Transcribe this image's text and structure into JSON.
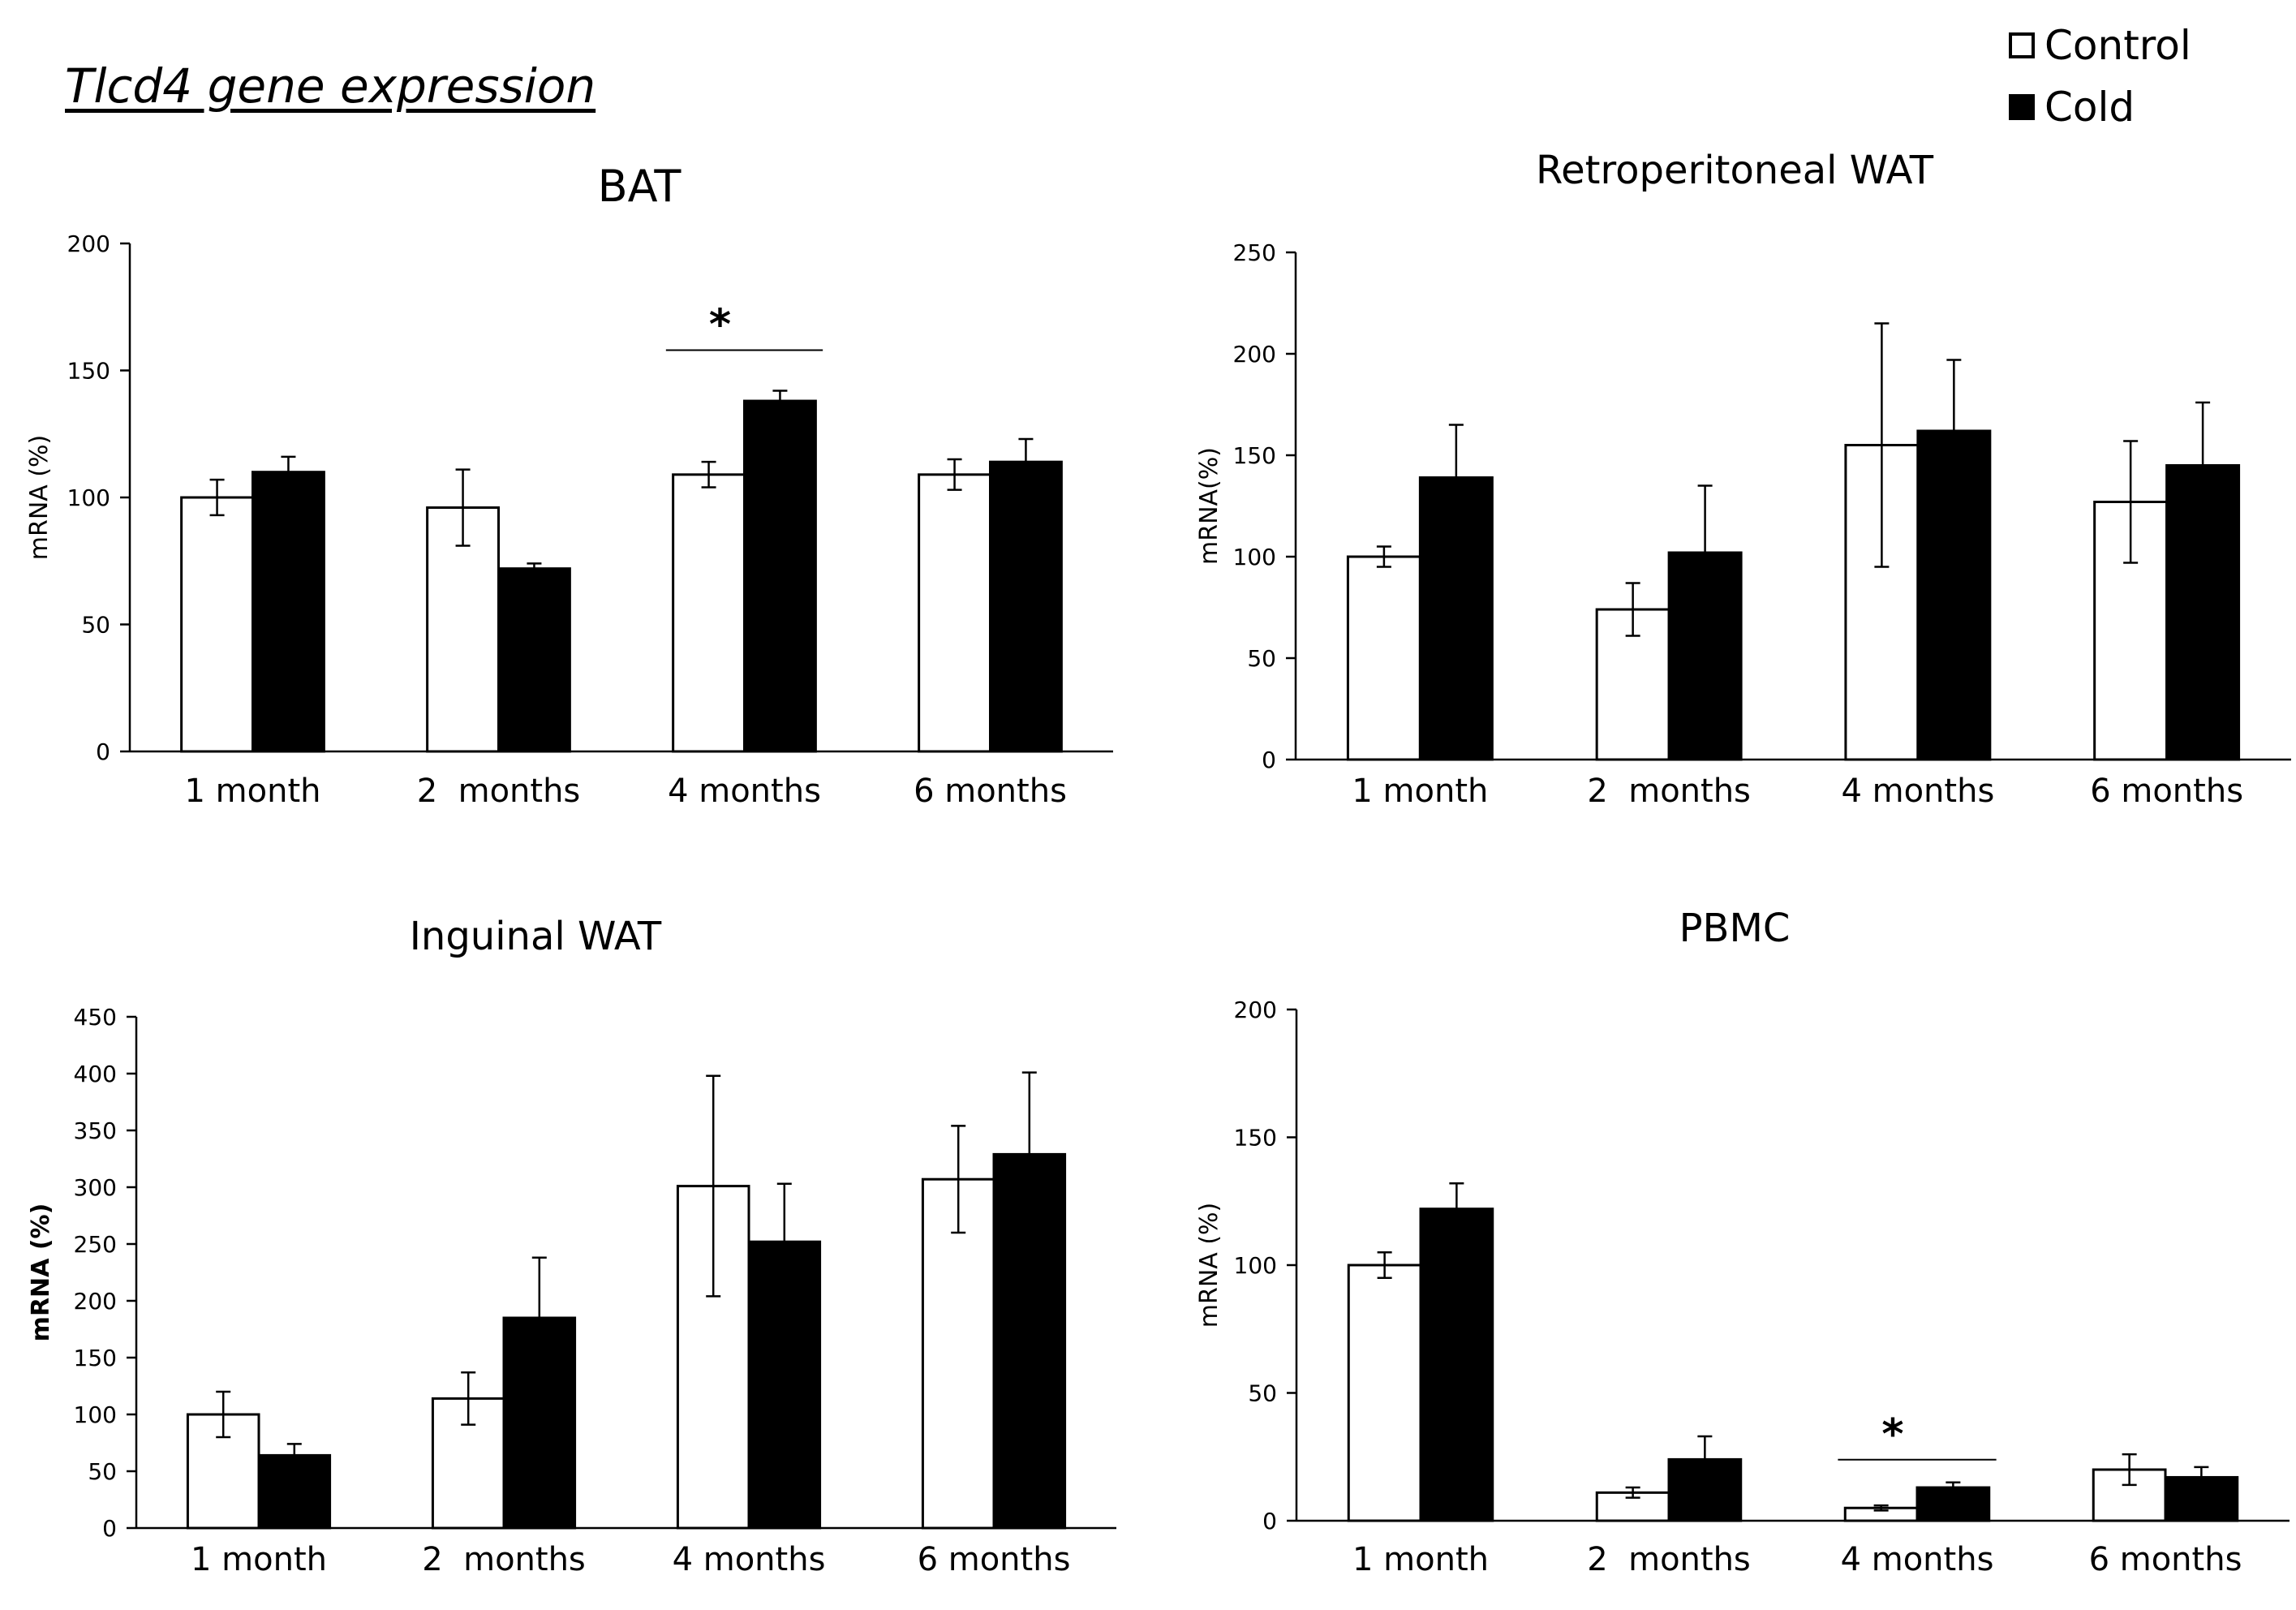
{
  "figure_title": "Tlcd4 gene expression",
  "legend": {
    "items": [
      {
        "label": "Control",
        "color": "#ffffff"
      },
      {
        "label": "Cold",
        "color": "#000000"
      }
    ]
  },
  "chart_data": [
    {
      "type": "bar",
      "title": "BAT",
      "xlabel": "",
      "ylabel": "mRNA (%)",
      "ylim": [
        0,
        200
      ],
      "yticks": [
        0,
        50,
        100,
        150,
        200
      ],
      "categories": [
        "1 month",
        "2  months",
        "4 months",
        "6 months"
      ],
      "series": [
        {
          "name": "Control",
          "values": [
            100,
            96,
            109,
            109
          ],
          "errors": [
            7,
            15,
            5,
            6
          ]
        },
        {
          "name": "Cold",
          "values": [
            110,
            72,
            138,
            114
          ],
          "errors": [
            6,
            2,
            4,
            9
          ]
        }
      ],
      "annotations": [
        {
          "category_index": 2,
          "text": "*"
        }
      ]
    },
    {
      "type": "bar",
      "title": "Retroperitoneal WAT",
      "xlabel": "",
      "ylabel": "mRNA(%)",
      "ylim": [
        0,
        250
      ],
      "yticks": [
        0,
        50,
        100,
        150,
        200,
        250
      ],
      "categories": [
        "1 month",
        "2  months",
        "4 months",
        "6 months"
      ],
      "series": [
        {
          "name": "Control",
          "values": [
            100,
            74,
            155,
            127
          ],
          "errors": [
            5,
            13,
            60,
            30
          ]
        },
        {
          "name": "Cold",
          "values": [
            139,
            102,
            162,
            145
          ],
          "errors": [
            26,
            33,
            35,
            31
          ]
        }
      ],
      "annotations": []
    },
    {
      "type": "bar",
      "title": "Inguinal WAT",
      "xlabel": "",
      "ylabel": "mRNA (%)",
      "ylim": [
        0,
        450
      ],
      "yticks": [
        0,
        50,
        100,
        150,
        200,
        250,
        300,
        350,
        400,
        450
      ],
      "categories": [
        "1 month",
        "2  months",
        "4 months",
        "6 months"
      ],
      "series": [
        {
          "name": "Control",
          "values": [
            100,
            114,
            301,
            307
          ],
          "errors": [
            20,
            23,
            97,
            47
          ]
        },
        {
          "name": "Cold",
          "values": [
            64,
            185,
            252,
            329
          ],
          "errors": [
            10,
            53,
            51,
            72
          ]
        }
      ],
      "annotations": []
    },
    {
      "type": "bar",
      "title": "PBMC",
      "xlabel": "",
      "ylabel": "mRNA (%)",
      "ylim": [
        0,
        200
      ],
      "yticks": [
        0,
        50,
        100,
        150,
        200
      ],
      "categories": [
        "1 month",
        "2  months",
        "4 months",
        "6 months"
      ],
      "series": [
        {
          "name": "Control",
          "values": [
            100,
            11,
            5,
            20
          ],
          "errors": [
            5,
            2,
            1,
            6
          ]
        },
        {
          "name": "Cold",
          "values": [
            122,
            24,
            13,
            17
          ],
          "errors": [
            10,
            9,
            2,
            4
          ]
        }
      ],
      "annotations": [
        {
          "category_index": 2,
          "text": "*"
        }
      ]
    }
  ]
}
